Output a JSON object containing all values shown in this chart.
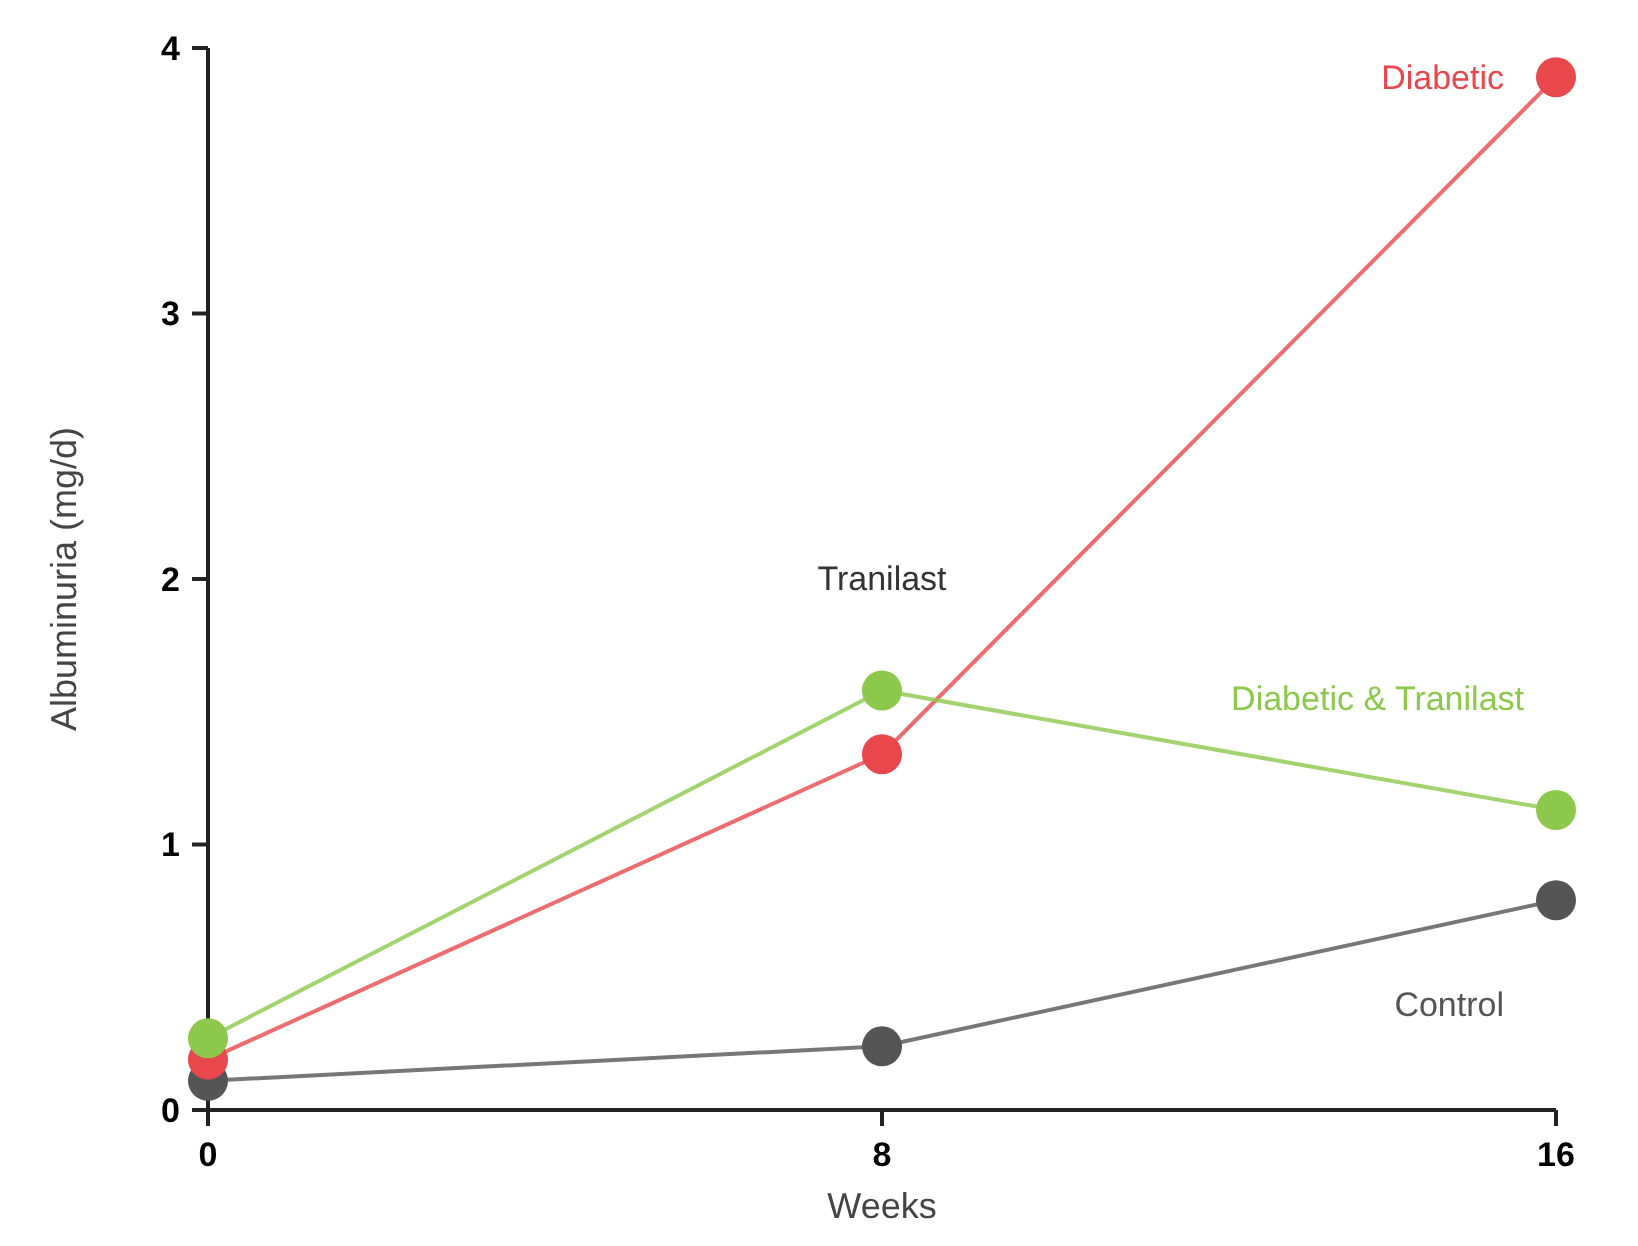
{
  "chart_data": {
    "type": "line",
    "xlabel": "Weeks",
    "ylabel": "Albuminuria (mg/d)",
    "x": [
      0,
      8,
      16
    ],
    "xlim": [
      0,
      16
    ],
    "xticks": [
      0,
      8,
      16
    ],
    "ylim": [
      0,
      4
    ],
    "yticks": [
      0,
      1,
      2,
      3,
      4
    ],
    "grid": false,
    "legend": false,
    "marker": "circle",
    "line_style": "solid",
    "series": [
      {
        "name": "Control",
        "color": "#555555",
        "values": [
          0.11,
          0.24,
          0.79
        ]
      },
      {
        "name": "Diabetic",
        "color": "#e8474b",
        "values": [
          0.19,
          1.34,
          3.89
        ]
      },
      {
        "name": "Diabetic & Tranilast",
        "color": "#8cc84b",
        "values": [
          0.27,
          1.58,
          1.13
        ]
      }
    ],
    "annotations": [
      "Tranilast"
    ]
  }
}
